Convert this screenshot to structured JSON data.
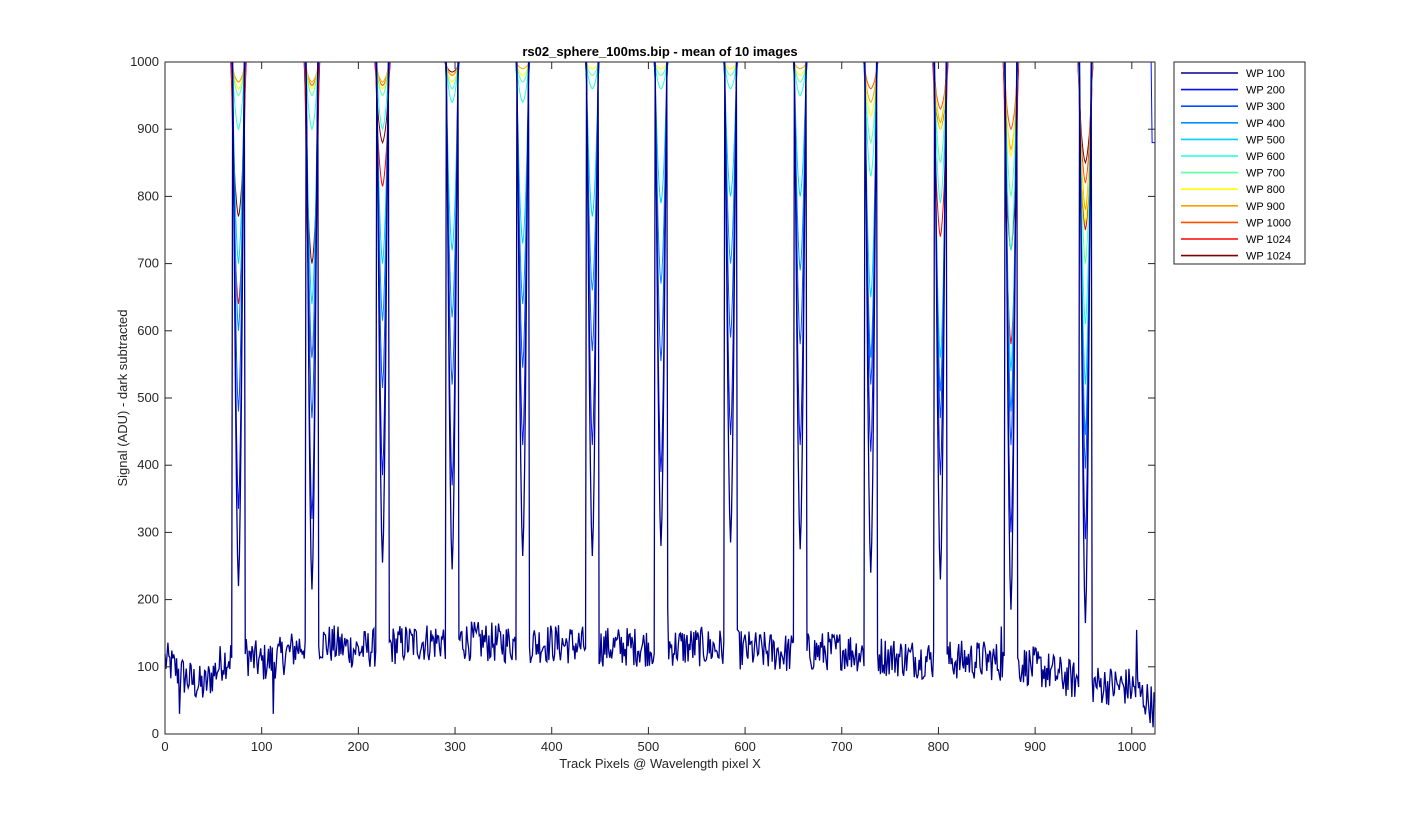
{
  "chart_data": {
    "type": "line",
    "title": "rs02_sphere_100ms.bip - mean of 10 images",
    "xlabel": "Track Pixels @ Wavelength pixel X",
    "ylabel": "Signal (ADU) - dark subtracted",
    "xlim": [
      0,
      1024
    ],
    "ylim": [
      0,
      1000
    ],
    "xticks": [
      0,
      100,
      200,
      300,
      400,
      500,
      600,
      700,
      800,
      900,
      1000
    ],
    "yticks": [
      0,
      100,
      200,
      300,
      400,
      500,
      600,
      700,
      800,
      900,
      1000
    ],
    "grid": false,
    "legend_position": "outside-top-right",
    "peak_centers": [
      76,
      152,
      225,
      297,
      370,
      442,
      513,
      585,
      657,
      730,
      802,
      875,
      952
    ],
    "baseline": {
      "points": [
        [
          0,
          110
        ],
        [
          20,
          85
        ],
        [
          40,
          70
        ],
        [
          60,
          110
        ],
        [
          80,
          120
        ],
        [
          100,
          105
        ],
        [
          120,
          115
        ],
        [
          150,
          140
        ],
        [
          200,
          125
        ],
        [
          250,
          135
        ],
        [
          300,
          140
        ],
        [
          350,
          135
        ],
        [
          400,
          135
        ],
        [
          450,
          130
        ],
        [
          500,
          130
        ],
        [
          550,
          130
        ],
        [
          600,
          125
        ],
        [
          650,
          120
        ],
        [
          700,
          125
        ],
        [
          750,
          115
        ],
        [
          800,
          110
        ],
        [
          850,
          110
        ],
        [
          900,
          100
        ],
        [
          950,
          75
        ],
        [
          1000,
          70
        ],
        [
          1024,
          40
        ]
      ],
      "minima": [
        [
          15,
          30
        ],
        [
          112,
          30
        ],
        [
          870,
          30
        ],
        [
          950,
          0
        ],
        [
          1022,
          10
        ]
      ],
      "maxima": [
        [
          155,
          195
        ],
        [
          300,
          190
        ],
        [
          520,
          185
        ],
        [
          865,
          160
        ],
        [
          1005,
          155
        ]
      ]
    },
    "series": [
      {
        "name": "WP 100",
        "color": "#00008f",
        "peak_min": [
          220,
          215,
          255,
          245,
          265,
          265,
          280,
          285,
          275,
          240,
          230,
          185,
          165
        ]
      },
      {
        "name": "WP 200",
        "color": "#0010ff",
        "peak_min": [
          335,
          320,
          385,
          370,
          430,
          430,
          390,
          445,
          430,
          420,
          385,
          300,
          290
        ]
      },
      {
        "name": "WP 300",
        "color": "#0050ff",
        "peak_min": [
          480,
          470,
          515,
          520,
          545,
          570,
          555,
          590,
          580,
          520,
          470,
          430,
          395
        ]
      },
      {
        "name": "WP 400",
        "color": "#0090ff",
        "peak_min": [
          600,
          560,
          615,
          620,
          640,
          660,
          670,
          700,
          690,
          560,
          510,
          480,
          445
        ]
      },
      {
        "name": "WP 500",
        "color": "#00d0ff",
        "peak_min": [
          700,
          640,
          700,
          720,
          730,
          770,
          790,
          800,
          800,
          650,
          560,
          540,
          520
        ]
      },
      {
        "name": "WP 600",
        "color": "#20ffdf",
        "peak_min": [
          900,
          900,
          900,
          940,
          940,
          960,
          960,
          960,
          950,
          830,
          790,
          720,
          610
        ]
      },
      {
        "name": "WP 700",
        "color": "#60ff9f",
        "peak_min": [
          950,
          950,
          950,
          960,
          970,
          980,
          980,
          980,
          970,
          880,
          850,
          800,
          700
        ]
      },
      {
        "name": "WP 800",
        "color": "#ffff00",
        "peak_min": [
          960,
          960,
          960,
          970,
          980,
          990,
          990,
          990,
          980,
          920,
          900,
          860,
          760
        ]
      },
      {
        "name": "WP 900",
        "color": "#ffa000",
        "peak_min": [
          970,
          970,
          970,
          980,
          990,
          1000,
          1000,
          1000,
          990,
          940,
          910,
          870,
          780
        ]
      },
      {
        "name": "WP 1000",
        "color": "#ff5000",
        "peak_min": [
          970,
          965,
          965,
          980,
          1000,
          1000,
          1000,
          1000,
          1000,
          960,
          930,
          900,
          820
        ]
      },
      {
        "name": "WP 1024",
        "color": "#ff0000",
        "peak_min": [
          640,
          560,
          815,
          980,
          1000,
          1000,
          1000,
          1000,
          1000,
          1000,
          740,
          580,
          750
        ]
      },
      {
        "name": "WP 1024",
        "color": "#800000",
        "peak_min": [
          770,
          700,
          880,
          985,
          1000,
          1000,
          1000,
          1000,
          1000,
          1000,
          900,
          720,
          850
        ]
      }
    ]
  }
}
